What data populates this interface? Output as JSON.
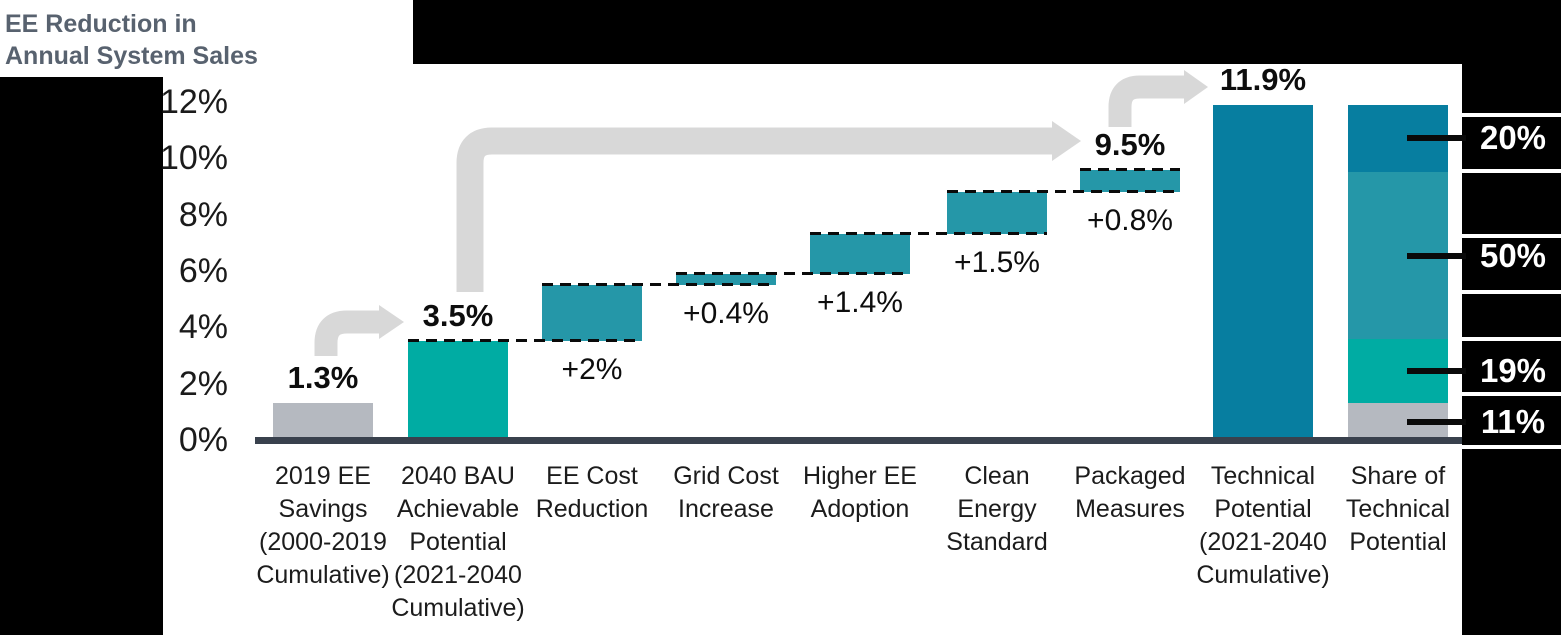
{
  "title": {
    "line1": "EE Reduction in",
    "line2": "Annual System Sales"
  },
  "colors": {
    "gray": "#B5B9C0",
    "teal_bright": "#00ACA3",
    "teal_medium": "#2597A8",
    "blue_dark": "#077EA0",
    "arrow_gray": "#D8D8D8",
    "axis": "#39414D",
    "title_text": "#58626F"
  },
  "chart_data": {
    "type": "bar",
    "subtype": "waterfall-with-stacked-share-column",
    "unit": "%",
    "ylim": [
      0,
      12
    ],
    "grid": "off",
    "yticks": {
      "values": [
        12,
        10,
        8,
        6,
        4,
        2,
        0
      ],
      "labels": [
        "12%",
        "10%",
        "8%",
        "6%",
        "4%",
        "2%",
        "0%"
      ]
    },
    "columns": [
      {
        "category_lines": [
          "2019 EE",
          "Savings",
          "(2000-2019",
          "Cumulative)"
        ],
        "kind": "total",
        "start": 0,
        "end": 1.3,
        "color_key": "gray",
        "value_label": "1.3%",
        "value_label_position": "above",
        "value_label_bold": true
      },
      {
        "category_lines": [
          "2040 BAU",
          "Achievable",
          "Potential",
          "(2021-2040",
          "Cumulative)"
        ],
        "kind": "total",
        "start": 0,
        "end": 3.5,
        "color_key": "teal_bright",
        "value_label": "3.5%",
        "value_label_position": "above",
        "value_label_bold": true
      },
      {
        "category_lines": [
          "EE Cost",
          "Reduction"
        ],
        "kind": "step",
        "start": 3.5,
        "end": 5.5,
        "color_key": "teal_medium",
        "value_label": "+2%",
        "value_label_position": "below",
        "value_label_bold": false
      },
      {
        "category_lines": [
          "Grid Cost",
          "Increase"
        ],
        "kind": "step",
        "start": 5.5,
        "end": 5.9,
        "color_key": "teal_medium",
        "value_label": "+0.4%",
        "value_label_position": "below",
        "value_label_bold": false
      },
      {
        "category_lines": [
          "Higher EE",
          "Adoption"
        ],
        "kind": "step",
        "start": 5.9,
        "end": 7.3,
        "color_key": "teal_medium",
        "value_label": "+1.4%",
        "value_label_position": "below",
        "value_label_bold": false
      },
      {
        "category_lines": [
          "Clean",
          "Energy",
          "Standard"
        ],
        "kind": "step",
        "start": 7.3,
        "end": 8.8,
        "color_key": "teal_medium",
        "value_label": "+1.5%",
        "value_label_position": "below",
        "value_label_bold": false
      },
      {
        "category_lines": [
          "Packaged",
          "Measures"
        ],
        "kind": "step",
        "start": 8.8,
        "end": 9.6,
        "color_key": "teal_medium",
        "value_label": "+0.8%",
        "value_label_position": "below",
        "value_label_bold": false,
        "summary_label": "9.5%"
      },
      {
        "category_lines": [
          "Technical",
          "Potential",
          "(2021-2040",
          "Cumulative)"
        ],
        "kind": "total",
        "start": 0,
        "end": 11.9,
        "color_key": "blue_dark",
        "value_label": "11.9%",
        "value_label_position": "above",
        "value_label_bold": true
      },
      {
        "category_lines": [
          "Share of",
          "Technical",
          "Potential"
        ],
        "kind": "stacked",
        "segments": [
          {
            "label": "11%",
            "value": 1.31,
            "color_key": "gray"
          },
          {
            "label": "19%",
            "value": 2.26,
            "color_key": "teal_bright"
          },
          {
            "label": "50%",
            "value": 5.95,
            "color_key": "teal_medium"
          },
          {
            "label": "20%",
            "value": 2.38,
            "color_key": "blue_dark"
          }
        ]
      }
    ],
    "connectors": [
      {
        "level": 3.5,
        "from": 1,
        "to": 2
      },
      {
        "level": 5.5,
        "from": 2,
        "to": 3
      },
      {
        "level": 5.9,
        "from": 3,
        "to": 4
      },
      {
        "level": 7.3,
        "from": 4,
        "to": 5
      },
      {
        "level": 8.8,
        "from": 5,
        "to": 6
      },
      {
        "level": 9.6,
        "from": 6,
        "to": 6
      }
    ]
  }
}
